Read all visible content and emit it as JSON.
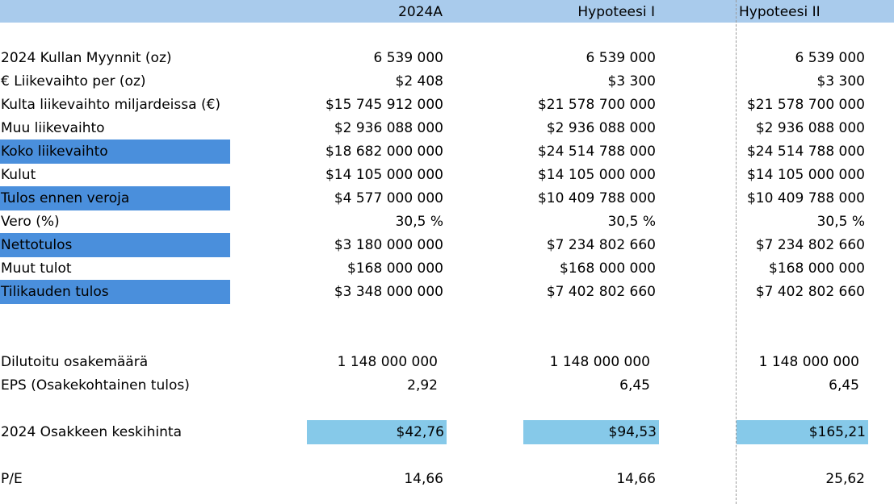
{
  "header": {
    "col1": "2024A",
    "col2": "Hypoteesi I",
    "col3": "Hypoteesi II"
  },
  "rows": [
    {
      "label": "2024 Kullan Myynnit (oz)",
      "values": [
        "6 539 000",
        "6 539 000",
        "6 539 000"
      ]
    },
    {
      "label": "€ Liikevaihto per (oz)",
      "values": [
        "$2 408",
        "$3 300",
        "$3 300"
      ]
    },
    {
      "label": "Kulta liikevaihto miljardeissa (€)",
      "values": [
        "$15 745 912 000",
        "$21 578 700 000",
        "$21 578 700 000"
      ]
    },
    {
      "label": "Muu liikevaihto",
      "values": [
        "$2 936 088 000",
        "$2 936 088 000",
        "$2 936 088 000"
      ]
    },
    {
      "label": "Koko liikevaihto",
      "values": [
        "$18 682 000 000",
        "$24 514 788 000",
        "$24 514 788 000"
      ]
    },
    {
      "label": "Kulut",
      "values": [
        "$14 105 000 000",
        "$14 105 000 000",
        "$14 105 000 000"
      ]
    },
    {
      "label": "Tulos ennen veroja",
      "values": [
        "$4 577 000 000",
        "$10 409 788 000",
        "$10 409 788 000"
      ]
    },
    {
      "label": "Vero (%)",
      "values": [
        "30,5 %",
        "30,5 %",
        "30,5 %"
      ]
    },
    {
      "label": "Nettotulos",
      "values": [
        "$3 180 000 000",
        "$7 234 802 660",
        "$7 234 802 660"
      ]
    },
    {
      "label": "Muut tulot",
      "values": [
        "$168 000 000",
        "$168 000 000",
        "$168 000 000"
      ]
    },
    {
      "label": "Tilikauden tulos",
      "values": [
        "$3 348 000 000",
        "$7 402 802 660",
        "$7 402 802 660"
      ]
    },
    {
      "label": "Dilutoitu osakemäärä",
      "values": [
        "1 148 000 000",
        "1 148 000 000",
        "1 148 000 000"
      ]
    },
    {
      "label": "EPS (Osakekohtainen tulos)",
      "values": [
        "2,92",
        "6,45",
        "6,45"
      ]
    },
    {
      "label": "2024 Osakkeen keskihinta",
      "values": [
        "$42,76",
        "$94,53",
        "$165,21"
      ]
    },
    {
      "label": "P/E",
      "values": [
        "14,66",
        "14,66",
        "25,62"
      ]
    }
  ],
  "colors": {
    "header_band": "#a9cbec",
    "highlight_label": "#4a8fdc",
    "price_highlight": "#86c9e9"
  }
}
